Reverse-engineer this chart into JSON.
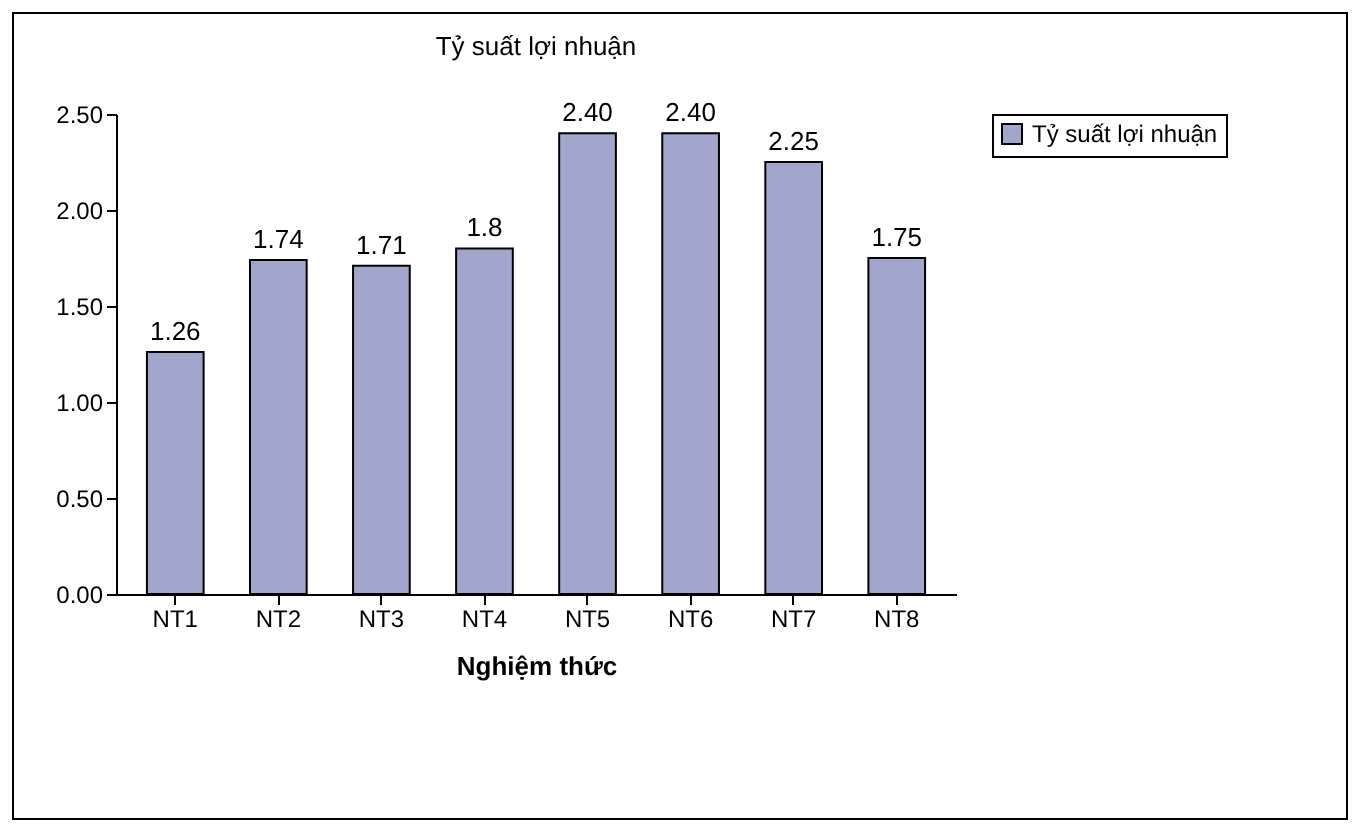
{
  "chart_data": {
    "type": "bar",
    "title": "Tỷ suất lợi nhuận",
    "xlabel": "Nghiệm thức",
    "categories": [
      "NT1",
      "NT2",
      "NT3",
      "NT4",
      "NT5",
      "NT6",
      "NT7",
      "NT8"
    ],
    "series": [
      {
        "name": "Tỷ suất lợi nhuận",
        "color": "#a3a6cc",
        "values": [
          1.26,
          1.74,
          1.71,
          1.8,
          2.4,
          2.4,
          2.25,
          1.75
        ],
        "value_labels": [
          "1.26",
          "1.74",
          "1.71",
          "1.8",
          "2.40",
          "2.40",
          "2.25",
          "1.75"
        ]
      }
    ],
    "ylim": [
      0,
      2.5
    ],
    "yticks": [
      {
        "value": 0,
        "label": "0.00"
      },
      {
        "value": 0.5,
        "label": "0.50"
      },
      {
        "value": 1,
        "label": "1.00"
      },
      {
        "value": 1.5,
        "label": "1.50"
      },
      {
        "value": 2,
        "label": "2.00"
      },
      {
        "value": 2.5,
        "label": "2.50"
      }
    ],
    "legend": "right"
  }
}
